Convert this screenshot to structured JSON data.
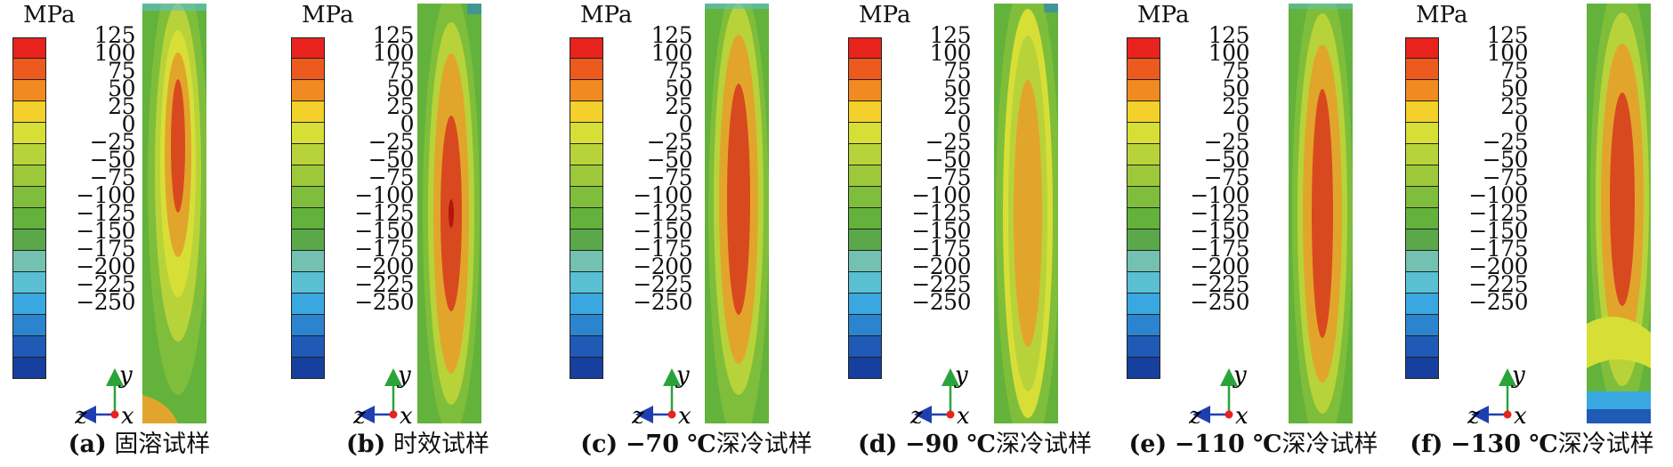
{
  "unit": "MPa",
  "legend": {
    "ticks": [
      "125",
      "100",
      "75",
      "50",
      "25",
      "0",
      "−25",
      "−50",
      "−75",
      "−100",
      "−125",
      "−150",
      "−175",
      "−200",
      "−225",
      "−250"
    ],
    "colors": [
      "#e8231d",
      "#ec5a1e",
      "#f28a22",
      "#f3d02a",
      "#d7df37",
      "#b8d33a",
      "#9cc83a",
      "#7fbe3a",
      "#63b23b",
      "#5aa84a",
      "#73c1b1",
      "#5bbfd4",
      "#3aa8e0",
      "#2b84cf",
      "#1f5ab7",
      "#173f9d"
    ]
  },
  "axes": {
    "x": "x",
    "y": "y",
    "z": "z"
  },
  "panels": [
    {
      "label": "(a)",
      "title": "固溶试样"
    },
    {
      "label": "(b)",
      "title": "时效试样"
    },
    {
      "label": "(c)",
      "title_prefix": "−70 ℃",
      "title": "深冷试样"
    },
    {
      "label": "(d)",
      "title_prefix": "−90 ℃",
      "title": "深冷试样"
    },
    {
      "label": "(e)",
      "title_prefix": "−110 ℃",
      "title": "深冷试样"
    },
    {
      "label": "(f)",
      "title_prefix": "−130 ℃",
      "title": "深冷试样"
    }
  ]
}
